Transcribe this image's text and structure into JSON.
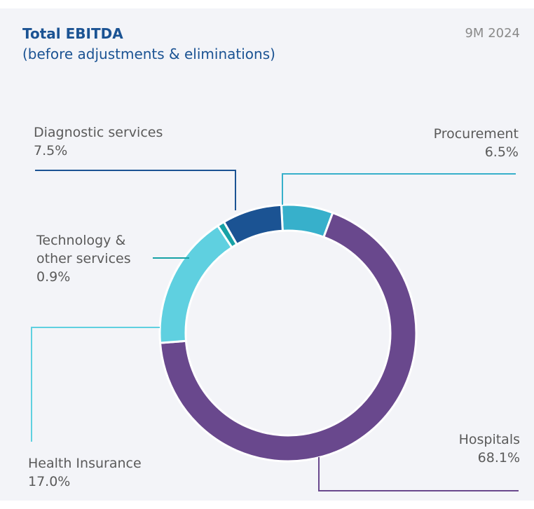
{
  "chart_data": {
    "type": "donut",
    "title": "Total EBITDA",
    "subtitle": "(before adjustments & eliminations)",
    "period": "9M 2024",
    "categories": [
      "Procurement",
      "Hospitals",
      "Health Insurance",
      "Technology & other services",
      "Diagnostic services"
    ],
    "values": [
      6.5,
      68.1,
      17.0,
      0.9,
      7.5
    ],
    "value_labels": [
      "6.5%",
      "68.1%",
      "17.0%",
      "0.9%",
      "7.5%"
    ],
    "colors": [
      "#37b0cb",
      "#69488d",
      "#5fd0e0",
      "#17a2a6",
      "#1b5393"
    ]
  }
}
